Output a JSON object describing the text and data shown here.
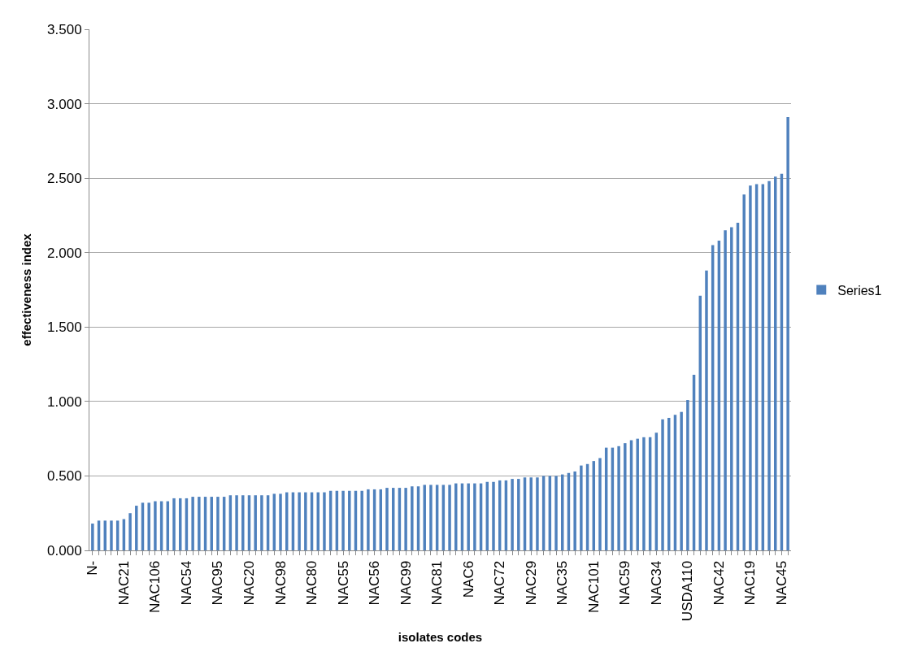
{
  "chart_data": {
    "type": "bar",
    "xlabel": "isolates codes",
    "ylabel": "effectiveness index",
    "categories": [
      "N-",
      null,
      null,
      null,
      null,
      "NAC21",
      null,
      null,
      null,
      null,
      "NAC106",
      null,
      null,
      null,
      null,
      "NAC54",
      null,
      null,
      null,
      null,
      "NAC95",
      null,
      null,
      null,
      null,
      "NAC20",
      null,
      null,
      null,
      null,
      "NAC98",
      null,
      null,
      null,
      null,
      "NAC80",
      null,
      null,
      null,
      null,
      "NAC55",
      null,
      null,
      null,
      null,
      "NAC56",
      null,
      null,
      null,
      null,
      "NAC99",
      null,
      null,
      null,
      null,
      "NAC81",
      null,
      null,
      null,
      null,
      "NAC6",
      null,
      null,
      null,
      null,
      "NAC72",
      null,
      null,
      null,
      null,
      "NAC29",
      null,
      null,
      null,
      null,
      "NAC35",
      null,
      null,
      null,
      null,
      "NAC101",
      null,
      null,
      null,
      null,
      "NAC59",
      null,
      null,
      null,
      null,
      "NAC34",
      null,
      null,
      null,
      null,
      "USDA110",
      null,
      null,
      null,
      null,
      "NAC42",
      null,
      null,
      null,
      null,
      "NAC19",
      null,
      null,
      null,
      null,
      "NAC45",
      null
    ],
    "series": [
      {
        "name": "Series1",
        "color": "#4f81bd",
        "values": [
          0.18,
          0.2,
          0.2,
          0.2,
          0.2,
          0.21,
          0.25,
          0.3,
          0.32,
          0.32,
          0.33,
          0.33,
          0.33,
          0.35,
          0.35,
          0.35,
          0.36,
          0.36,
          0.36,
          0.36,
          0.36,
          0.36,
          0.37,
          0.37,
          0.37,
          0.37,
          0.37,
          0.37,
          0.37,
          0.38,
          0.38,
          0.39,
          0.39,
          0.39,
          0.39,
          0.39,
          0.39,
          0.39,
          0.4,
          0.4,
          0.4,
          0.4,
          0.4,
          0.4,
          0.41,
          0.41,
          0.41,
          0.42,
          0.42,
          0.42,
          0.42,
          0.43,
          0.43,
          0.44,
          0.44,
          0.44,
          0.44,
          0.44,
          0.45,
          0.45,
          0.45,
          0.45,
          0.45,
          0.46,
          0.46,
          0.47,
          0.47,
          0.48,
          0.48,
          0.49,
          0.49,
          0.49,
          0.5,
          0.5,
          0.5,
          0.51,
          0.52,
          0.53,
          0.57,
          0.58,
          0.6,
          0.62,
          0.69,
          0.69,
          0.7,
          0.72,
          0.74,
          0.75,
          0.76,
          0.76,
          0.79,
          0.88,
          0.89,
          0.91,
          0.93,
          1.01,
          1.18,
          1.71,
          1.88,
          2.05,
          2.08,
          2.15,
          2.17,
          2.2,
          2.39,
          2.45,
          2.46,
          2.46,
          2.48,
          2.51,
          2.53,
          2.91
        ]
      }
    ],
    "ylim": [
      0,
      3.5
    ],
    "yticks": [
      {
        "value": 0,
        "label": "0.000"
      },
      {
        "value": 0.5,
        "label": "0.500"
      },
      {
        "value": 1,
        "label": "1.000"
      },
      {
        "value": 1.5,
        "label": "1.500"
      },
      {
        "value": 2,
        "label": "2.000"
      },
      {
        "value": 2.5,
        "label": "2.500"
      },
      {
        "value": 3,
        "label": "3.000"
      },
      {
        "value": 3.5,
        "label": "3.500"
      }
    ],
    "grid": "y",
    "legend": "right"
  }
}
